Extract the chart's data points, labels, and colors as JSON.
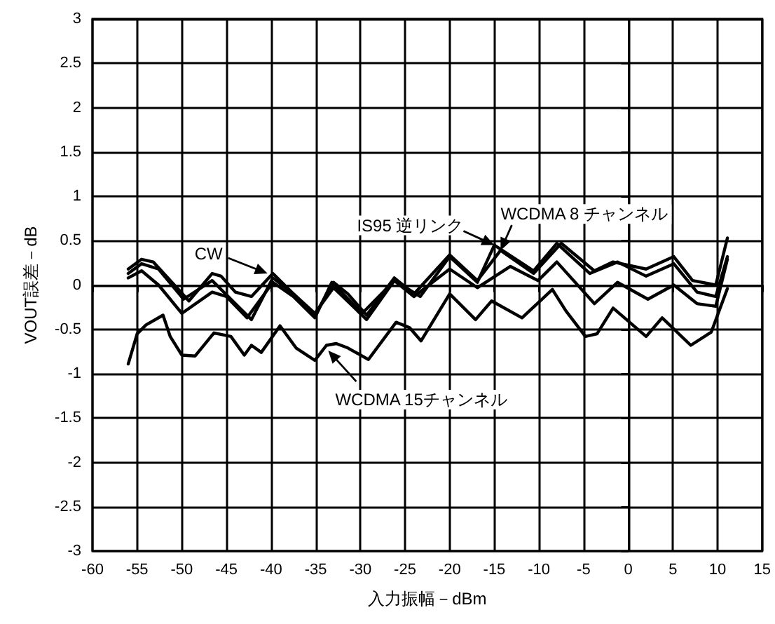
{
  "chart_data": {
    "type": "line",
    "xlabel": "入力振幅－dBm",
    "ylabel": "VOUT誤差－dB",
    "xlim": [
      -60,
      15
    ],
    "xticks": [
      -60,
      -55,
      -50,
      -45,
      -40,
      -35,
      -30,
      -25,
      -20,
      -15,
      -10,
      -5,
      0,
      5,
      10,
      15
    ],
    "ylim": [
      -3,
      3
    ],
    "yticks": [
      -3,
      -2.5,
      -2,
      -1.5,
      -1,
      -0.5,
      0,
      0.5,
      1,
      1.5,
      2,
      2.5,
      3
    ],
    "grid": true,
    "marker": "none",
    "line_style": "solid",
    "series": [
      {
        "color": "#000000",
        "x": [
          -56,
          -54.5,
          -53.2,
          -51.1,
          -49.2,
          -46.6,
          -45.6,
          -44,
          -42.2,
          -39.8,
          -37.7,
          -35.1,
          -33,
          -31.4,
          -29.3,
          -26.2,
          -24,
          -20,
          -16.9,
          -14.3,
          -10.6,
          -7.5,
          -3.8,
          -1.7,
          2,
          5.1,
          7.2,
          9.8,
          11.1
        ],
        "values": [
          0.18,
          0.29,
          0.26,
          0.03,
          -0.18,
          0.13,
          0.1,
          -0.08,
          -0.13,
          0.13,
          -0.08,
          -0.34,
          0.03,
          -0.1,
          -0.34,
          0.08,
          -0.1,
          0.34,
          0.05,
          0.39,
          0.13,
          0.47,
          0.16,
          0.26,
          0.18,
          0.32,
          0.05,
          0,
          0.53
        ]
      },
      {
        "color": "#000000",
        "x": [
          -56,
          -54.5,
          -52.6,
          -49.8,
          -46.6,
          -44.3,
          -42.2,
          -39.8,
          -37.5,
          -35.1,
          -33,
          -29.3,
          -26.2,
          -23.3,
          -20,
          -16.9,
          -15,
          -10.6,
          -8,
          -4.3,
          -1.2,
          2,
          5.1,
          7.7,
          9.8,
          11.1
        ],
        "values": [
          0.13,
          0.24,
          0.18,
          -0.16,
          0.05,
          -0.18,
          -0.39,
          0.08,
          -0.1,
          -0.32,
          -0.03,
          -0.39,
          0.05,
          -0.13,
          0.32,
          0.03,
          0.45,
          0.16,
          0.47,
          0.13,
          0.26,
          0.1,
          0.24,
          -0.08,
          -0.13,
          0.32
        ]
      },
      {
        "color": "#000000",
        "x": [
          -56,
          -54.5,
          -52.6,
          -50,
          -46.6,
          -45,
          -42.7,
          -39.8,
          -37.5,
          -35.1,
          -33.2,
          -29.8,
          -26.2,
          -24,
          -20,
          -16.9,
          -13.2,
          -10.1,
          -8,
          -3.8,
          -1.2,
          2.2,
          5.1,
          7.7,
          9.8,
          11.1
        ],
        "values": [
          0.08,
          0.16,
          0,
          -0.32,
          -0.08,
          -0.13,
          -0.37,
          0.03,
          -0.13,
          -0.37,
          0.03,
          -0.32,
          0.05,
          -0.13,
          0.18,
          -0.03,
          0.21,
          0.05,
          0.26,
          -0.21,
          0.03,
          -0.16,
          0,
          -0.21,
          -0.24,
          0.29
        ]
      },
      {
        "color": "#000000",
        "x": [
          -56,
          -55,
          -54,
          -52.1,
          -51.3,
          -50,
          -48.5,
          -46.4,
          -44.5,
          -43,
          -42.2,
          -41.1,
          -39,
          -37.2,
          -35.1,
          -33.8,
          -32.7,
          -31.4,
          -29.1,
          -26,
          -24.5,
          -23.2,
          -20,
          -17.1,
          -15.3,
          -11.9,
          -8.5,
          -7,
          -4.8,
          -3.5,
          -1.7,
          2,
          3.8,
          7,
          9.3,
          11.1
        ],
        "values": [
          -0.89,
          -0.55,
          -0.45,
          -0.34,
          -0.58,
          -0.79,
          -0.8,
          -0.54,
          -0.58,
          -0.79,
          -0.68,
          -0.76,
          -0.46,
          -0.71,
          -0.85,
          -0.68,
          -0.66,
          -0.71,
          -0.84,
          -0.42,
          -0.48,
          -0.63,
          -0.1,
          -0.39,
          -0.18,
          -0.37,
          -0.05,
          -0.29,
          -0.58,
          -0.55,
          -0.26,
          -0.58,
          -0.37,
          -0.68,
          -0.53,
          -0.04
        ]
      }
    ],
    "annotations": [
      {
        "text": "CW",
        "x": -40.4,
        "y": 0.13
      },
      {
        "text": "IS95 逆リンク",
        "x": -15,
        "y": 0.45
      },
      {
        "text": "WCDMA 8 チャンネル",
        "x": -14.3,
        "y": 0.39
      },
      {
        "text": "WCDMA 15チャンネル",
        "x": -33.6,
        "y": -0.74
      }
    ]
  }
}
